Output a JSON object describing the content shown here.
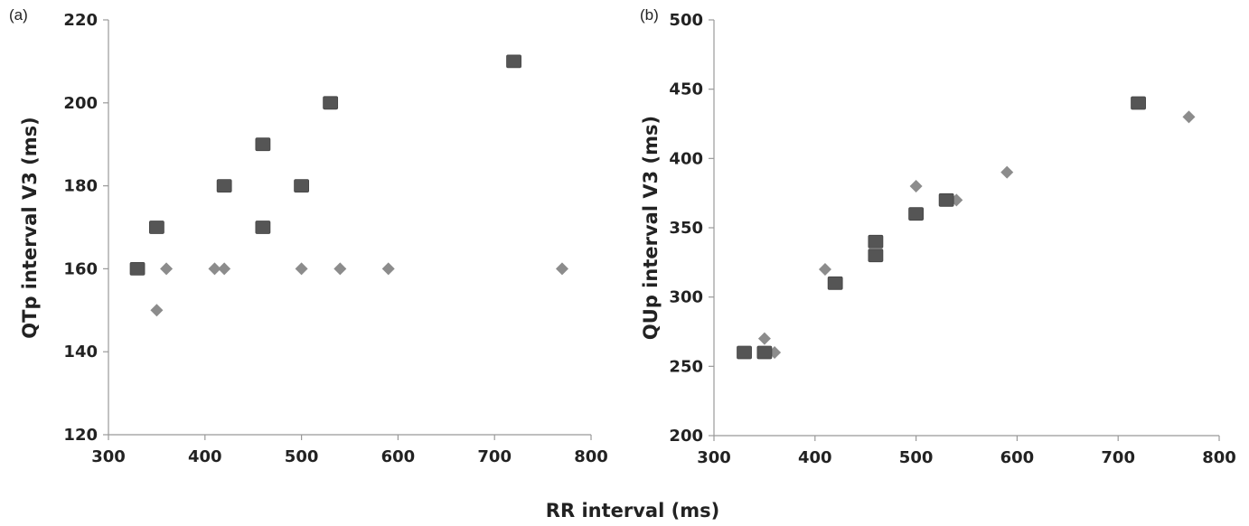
{
  "shared_xlabel": "RR interval (ms)",
  "colors": {
    "square": "#555555",
    "diamond": "#8c8c8c"
  },
  "chart_data": [
    {
      "type": "scatter",
      "panel_label": "(a)",
      "ylabel": "QTp interval  V3 (ms)",
      "xlim": [
        300,
        800
      ],
      "ylim": [
        120,
        220
      ],
      "xticks": [
        300,
        400,
        500,
        600,
        700,
        800
      ],
      "yticks": [
        120,
        140,
        160,
        180,
        200,
        220
      ],
      "grid": false,
      "series": [
        {
          "marker": "square",
          "points": [
            [
              330,
              160
            ],
            [
              350,
              170
            ],
            [
              420,
              180
            ],
            [
              460,
              190
            ],
            [
              460,
              170
            ],
            [
              500,
              180
            ],
            [
              530,
              200
            ],
            [
              720,
              210
            ]
          ]
        },
        {
          "marker": "diamond",
          "points": [
            [
              350,
              150
            ],
            [
              360,
              160
            ],
            [
              410,
              160
            ],
            [
              420,
              160
            ],
            [
              500,
              160
            ],
            [
              540,
              160
            ],
            [
              590,
              160
            ],
            [
              770,
              160
            ]
          ]
        }
      ]
    },
    {
      "type": "scatter",
      "panel_label": "(b)",
      "ylabel": "QUp interval  V3 (ms)",
      "xlim": [
        300,
        800
      ],
      "ylim": [
        200,
        500
      ],
      "xticks": [
        300,
        400,
        500,
        600,
        700,
        800
      ],
      "yticks": [
        200,
        250,
        300,
        350,
        400,
        450,
        500
      ],
      "grid": false,
      "series": [
        {
          "marker": "square",
          "points": [
            [
              330,
              260
            ],
            [
              350,
              260
            ],
            [
              420,
              310
            ],
            [
              460,
              340
            ],
            [
              460,
              330
            ],
            [
              500,
              360
            ],
            [
              530,
              370
            ],
            [
              720,
              440
            ]
          ]
        },
        {
          "marker": "diamond",
          "points": [
            [
              350,
              270
            ],
            [
              360,
              260
            ],
            [
              410,
              320
            ],
            [
              500,
              380
            ],
            [
              540,
              370
            ],
            [
              590,
              390
            ],
            [
              770,
              430
            ]
          ]
        }
      ]
    }
  ]
}
